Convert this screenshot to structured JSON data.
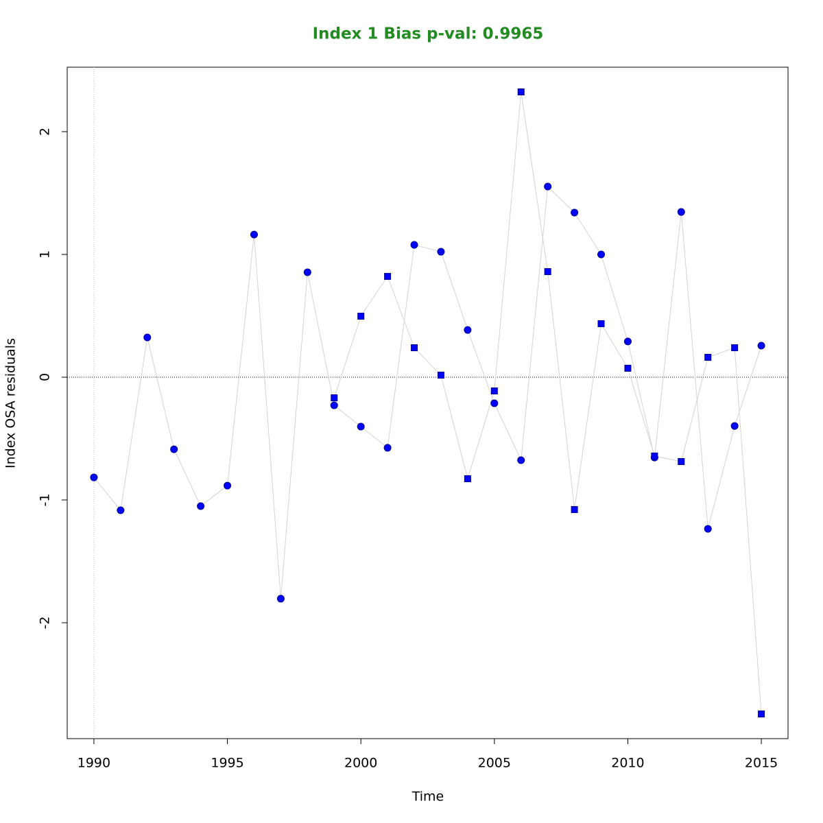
{
  "chart_data": {
    "type": "scatter",
    "title": "Index 1 Bias p-val: 0.9965",
    "title_color": "#228b22",
    "x_label": "Time",
    "y_label": "Index OSA residuals",
    "xlim": [
      1989,
      2016
    ],
    "ylim": [
      -2.944,
      2.525
    ],
    "xticks": [
      1990,
      1995,
      2000,
      2005,
      2010,
      2015
    ],
    "yticks": [
      -2,
      -1,
      0,
      1,
      2
    ],
    "hline": 0,
    "vline": 1990,
    "line_color": "#d3d3d3",
    "series": [
      {
        "marker": "circle",
        "color": "#0000ff",
        "x": [
          1990,
          1991,
          1992,
          1993,
          1994,
          1995,
          1996,
          1997,
          1998,
          1999,
          2000,
          2001,
          2002,
          2003,
          2004,
          2005,
          2006,
          2007,
          2008,
          2009,
          2010,
          2011,
          2012,
          2013,
          2014,
          2015
        ],
        "values": [
          -0.816,
          -1.084,
          0.324,
          -0.587,
          -1.05,
          -0.883,
          1.162,
          -1.804,
          0.855,
          -0.229,
          -0.402,
          -0.575,
          1.078,
          1.022,
          0.385,
          -0.212,
          -0.676,
          1.553,
          1.341,
          1.0,
          0.291,
          -0.654,
          1.346,
          -1.235,
          -0.397,
          0.257
        ]
      },
      {
        "marker": "square",
        "color": "#0000ff",
        "x": [
          1999,
          2000,
          2001,
          2002,
          2003,
          2004,
          2005,
          2006,
          2007,
          2008,
          2009,
          2010,
          2011,
          2012,
          2013,
          2014,
          2015
        ],
        "values": [
          -0.168,
          0.497,
          0.821,
          0.24,
          0.017,
          -0.827,
          -0.112,
          2.324,
          0.86,
          -1.078,
          0.436,
          0.073,
          -0.642,
          -0.687,
          0.162,
          0.24,
          -2.743
        ]
      }
    ]
  }
}
